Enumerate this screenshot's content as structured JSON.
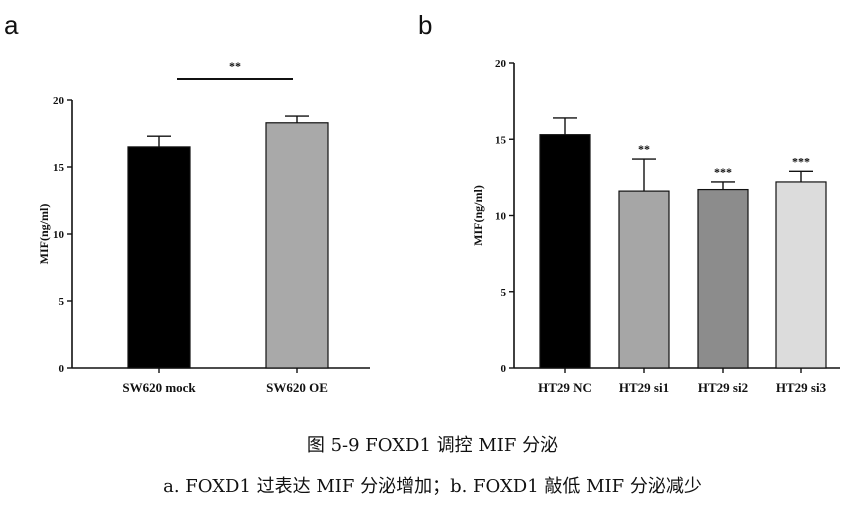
{
  "caption": {
    "title": "图 5-9 FOXD1 调控 MIF 分泌",
    "subtitle": "a. FOXD1 过表达 MIF 分泌增加；b. FOXD1 敲低 MIF 分泌减少"
  },
  "chart_data": [
    {
      "panel": "a",
      "type": "bar",
      "ylabel": "MIF(ng/ml)",
      "ylim": [
        0,
        20
      ],
      "yticks": [
        0,
        5,
        10,
        15,
        20
      ],
      "categories": [
        "SW620 mock",
        "SW620 OE"
      ],
      "values": [
        16.5,
        18.3
      ],
      "errors": [
        0.8,
        0.5
      ],
      "colors": [
        "#000000",
        "#a9a9a9"
      ],
      "significance": [
        {
          "from": 0,
          "to": 1,
          "label": "**"
        }
      ]
    },
    {
      "panel": "b",
      "type": "bar",
      "ylabel": "MIF(ng/ml)",
      "ylim": [
        0,
        20
      ],
      "yticks": [
        0,
        5,
        10,
        15,
        20
      ],
      "categories": [
        "HT29 NC",
        "HT29 si1",
        "HT29 si2",
        "HT29 si3"
      ],
      "values": [
        15.3,
        11.6,
        11.7,
        12.2
      ],
      "errors": [
        1.1,
        2.1,
        0.5,
        0.7
      ],
      "colors": [
        "#000000",
        "#a6a6a6",
        "#8c8c8c",
        "#dcdcdc"
      ],
      "bar_labels": [
        "",
        "**",
        "***",
        "***"
      ]
    }
  ]
}
